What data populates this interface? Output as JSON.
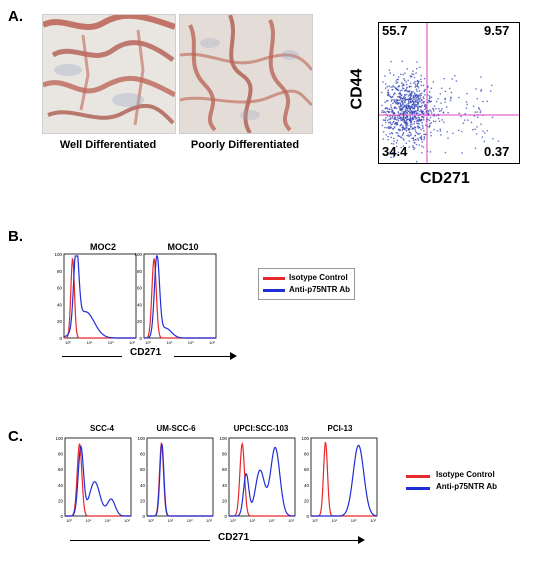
{
  "panel_a": {
    "letter": "A.",
    "images": [
      {
        "caption": "Well Differentiated"
      },
      {
        "caption": "Poorly Differentiated"
      }
    ],
    "scatter": {
      "y_label": "CD44",
      "x_label": "CD271",
      "quadrants": {
        "top_left": "55.7",
        "top_right": "9.57",
        "bottom_left": "34.4",
        "bottom_right": "0.37"
      },
      "gate_color": "#e040c0",
      "dot_color": "#2f43b5"
    }
  },
  "panel_b": {
    "letter": "B.",
    "plots": [
      {
        "title": "MOC2",
        "y_ticks": [
          "100",
          "80",
          "60",
          "40",
          "20",
          "0"
        ]
      },
      {
        "title": "MOC10",
        "y_ticks": [
          "100",
          "80",
          "60",
          "40",
          "20",
          "0"
        ]
      }
    ],
    "x_label": "CD271",
    "legend": [
      {
        "label": "Isotype Control",
        "color": "#e8282b"
      },
      {
        "label": "Anti-p75NTR Ab",
        "color": "#1f2fd6"
      }
    ]
  },
  "panel_c": {
    "letter": "C.",
    "plots": [
      {
        "title": "SCC-4"
      },
      {
        "title": "UM-SCC-6"
      },
      {
        "title": "UPCI:SCC-103"
      },
      {
        "title": "PCI-13"
      }
    ],
    "x_label": "CD271",
    "legend": [
      {
        "label": "Isotype Control",
        "color": "#e8282b"
      },
      {
        "label": "Anti-p75NTR Ab",
        "color": "#1f2fd6"
      }
    ]
  }
}
